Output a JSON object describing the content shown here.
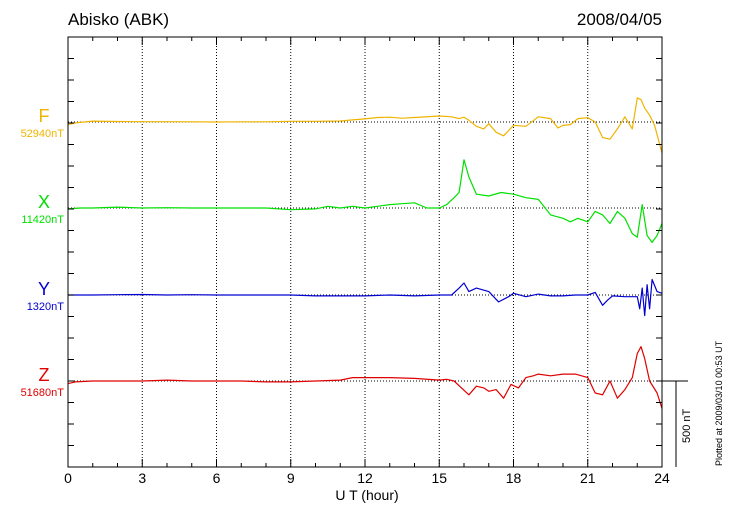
{
  "header": {
    "station": "Abisko (ABK)",
    "date": "2008/04/05"
  },
  "plotted_note": "Plotted at 2009/03/10 00:53 UT",
  "scale_bar_label": "500 nT",
  "chart_data": {
    "type": "line",
    "title": "Abisko (ABK)",
    "date": "2008/04/05",
    "xlabel": "U T (hour)",
    "xlim": [
      0,
      24
    ],
    "xticks": [
      "0",
      "3",
      "6",
      "9",
      "12",
      "15",
      "18",
      "21",
      "24"
    ],
    "grid": true,
    "scale_bar_nT": 500,
    "series": [
      {
        "name": "F",
        "baseline": "52940nT",
        "color": "#f0b400",
        "x": [
          0,
          0.3,
          1,
          2,
          3,
          4,
          5,
          6,
          7,
          8,
          9,
          10,
          11,
          11.5,
          12,
          12.5,
          13,
          13.5,
          14,
          15,
          15.5,
          15.8,
          16,
          16.2,
          16.5,
          16.8,
          17,
          17.3,
          17.6,
          18,
          18.5,
          19,
          19.5,
          19.8,
          20,
          20.3,
          20.6,
          21,
          21.3,
          21.6,
          21.9,
          22.2,
          22.5,
          22.8,
          23,
          23.15,
          23.3,
          23.5,
          23.7,
          24
        ],
        "y": [
          -15,
          -5,
          5,
          3,
          2,
          2,
          1,
          0,
          1,
          1,
          4,
          4,
          6,
          12,
          18,
          26,
          28,
          22,
          26,
          35,
          30,
          20,
          28,
          10,
          -25,
          -40,
          -10,
          -60,
          -80,
          -20,
          -25,
          30,
          20,
          -35,
          -20,
          -15,
          20,
          25,
          0,
          -90,
          -100,
          -40,
          30,
          -40,
          140,
          130,
          80,
          40,
          -20,
          -180
        ]
      },
      {
        "name": "X",
        "baseline": "11420nT",
        "color": "#00e000",
        "x": [
          0,
          0.5,
          1,
          2,
          3,
          4,
          5,
          6,
          7,
          8,
          9,
          10,
          10.5,
          11,
          11.5,
          12,
          12.5,
          13,
          13.5,
          14,
          14.5,
          15,
          15.3,
          15.6,
          15.8,
          16,
          16.2,
          16.5,
          17,
          17.5,
          18,
          18.5,
          19,
          19.5,
          20,
          20.3,
          20.6,
          21,
          21.3,
          21.6,
          21.9,
          22.2,
          22.5,
          22.8,
          23,
          23.2,
          23.4,
          23.6,
          23.8,
          24
        ],
        "y": [
          -5,
          0,
          0,
          5,
          0,
          2,
          0,
          0,
          0,
          0,
          -10,
          -5,
          10,
          0,
          10,
          0,
          10,
          20,
          25,
          30,
          0,
          0,
          20,
          60,
          90,
          280,
          180,
          80,
          70,
          90,
          80,
          60,
          50,
          -40,
          -60,
          -80,
          -60,
          -80,
          -20,
          -40,
          -90,
          -20,
          -60,
          -150,
          -170,
          20,
          -160,
          -200,
          -160,
          -90
        ]
      },
      {
        "name": "Y",
        "baseline": "1320nT",
        "color": "#0000d0",
        "x": [
          0,
          1,
          2,
          3,
          4,
          5,
          6,
          7,
          8,
          9,
          10,
          11,
          12,
          13,
          14,
          15,
          15.5,
          15.8,
          16,
          16.2,
          16.5,
          17,
          17.4,
          17.8,
          18,
          18.5,
          19,
          19.5,
          20,
          20.5,
          21,
          21.3,
          21.6,
          21.8,
          22,
          22.5,
          23,
          23.1,
          23.2,
          23.3,
          23.4,
          23.5,
          23.6,
          23.8,
          24
        ],
        "y": [
          0,
          0,
          2,
          3,
          0,
          2,
          0,
          0,
          0,
          0,
          -5,
          -5,
          -5,
          0,
          -5,
          0,
          0,
          40,
          70,
          20,
          40,
          20,
          -40,
          -10,
          10,
          -10,
          5,
          -5,
          -5,
          0,
          0,
          15,
          -60,
          -30,
          -5,
          -10,
          -10,
          -80,
          40,
          -120,
          60,
          -80,
          90,
          20,
          10
        ]
      },
      {
        "name": "Z",
        "baseline": "51680nT",
        "color": "#e00000",
        "x": [
          0,
          0.3,
          1,
          2,
          3,
          4,
          5,
          6,
          7,
          8,
          9,
          10,
          11,
          11.5,
          12,
          13,
          14,
          15,
          15.3,
          15.6,
          15.9,
          16.2,
          16.5,
          16.8,
          17,
          17.3,
          17.6,
          17.9,
          18.2,
          18.5,
          18.8,
          19,
          19.5,
          20,
          20.5,
          21,
          21.3,
          21.6,
          21.9,
          22.2,
          22.5,
          22.8,
          23,
          23.15,
          23.3,
          23.5,
          23.8,
          24
        ],
        "y": [
          -15,
          -5,
          0,
          0,
          0,
          5,
          0,
          0,
          0,
          -5,
          -5,
          0,
          5,
          20,
          20,
          20,
          15,
          5,
          10,
          0,
          -40,
          -80,
          -30,
          -40,
          -60,
          -50,
          -100,
          -20,
          -40,
          20,
          30,
          40,
          30,
          40,
          40,
          20,
          -70,
          -80,
          0,
          -100,
          -50,
          20,
          160,
          200,
          130,
          0,
          -70,
          -160
        ]
      }
    ]
  }
}
